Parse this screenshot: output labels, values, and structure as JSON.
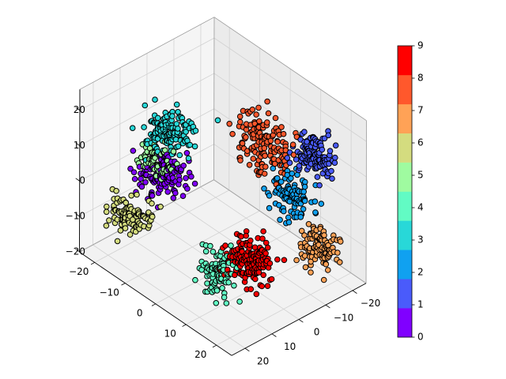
{
  "chart_data": {
    "type": "scatter",
    "projection": "3d",
    "title": "",
    "xlabel": "",
    "ylabel": "",
    "zlabel": "",
    "grid": true,
    "xlim": [
      -25,
      25
    ],
    "ylim": [
      -25,
      25
    ],
    "zlim": [
      -23,
      23
    ],
    "x_ticks": [
      -20,
      -10,
      0,
      10,
      20
    ],
    "y_ticks": [
      -20,
      -10,
      0,
      10,
      20
    ],
    "z_ticks": [
      -20,
      -10,
      0,
      10,
      20
    ],
    "colorbar": {
      "min": 0,
      "max": 9,
      "ticks": [
        0,
        1,
        2,
        3,
        4,
        5,
        6,
        7,
        8,
        9
      ],
      "colors": [
        "#8000ff",
        "#4a5bfb",
        "#10a1f0",
        "#28d8d8",
        "#62fbc4",
        "#9ffba0",
        "#d4dc7f",
        "#ffa256",
        "#ff582c",
        "#ff0000"
      ],
      "edge_color": "#000000"
    },
    "clusters": [
      {
        "label": 0,
        "center": [
          -15,
          6,
          -3
        ],
        "spread": [
          4.0,
          5.0,
          3.0
        ],
        "n": 150
      },
      {
        "label": 1,
        "center": [
          12,
          -20,
          8
        ],
        "spread": [
          4.0,
          4.0,
          3.0
        ],
        "n": 130
      },
      {
        "label": 2,
        "center": [
          16,
          -8,
          3
        ],
        "spread": [
          5.0,
          3.0,
          5.0
        ],
        "n": 110
      },
      {
        "label": 3,
        "center": [
          -8,
          11,
          15
        ],
        "spread": [
          4.0,
          5.0,
          3.0
        ],
        "n": 140
      },
      {
        "label": 4,
        "center": [
          12,
          16,
          -11
        ],
        "spread": [
          4.0,
          2.0,
          5.0
        ],
        "n": 90
      },
      {
        "label": 5,
        "center": [
          -12,
          12,
          6
        ],
        "spread": [
          3.0,
          4.0,
          3.0
        ],
        "n": 60
      },
      {
        "label": 6,
        "center": [
          -13,
          20,
          -8
        ],
        "spread": [
          4.0,
          4.0,
          3.0
        ],
        "n": 110
      },
      {
        "label": 7,
        "center": [
          24,
          -8,
          -6
        ],
        "spread": [
          3.0,
          4.0,
          4.0
        ],
        "n": 110
      },
      {
        "label": 8,
        "center": [
          8,
          -6,
          14
        ],
        "spread": [
          5.0,
          4.0,
          5.0
        ],
        "n": 150
      },
      {
        "label": 9,
        "center": [
          16,
          8,
          -8
        ],
        "spread": [
          4.0,
          4.0,
          5.0
        ],
        "n": 160
      }
    ]
  }
}
